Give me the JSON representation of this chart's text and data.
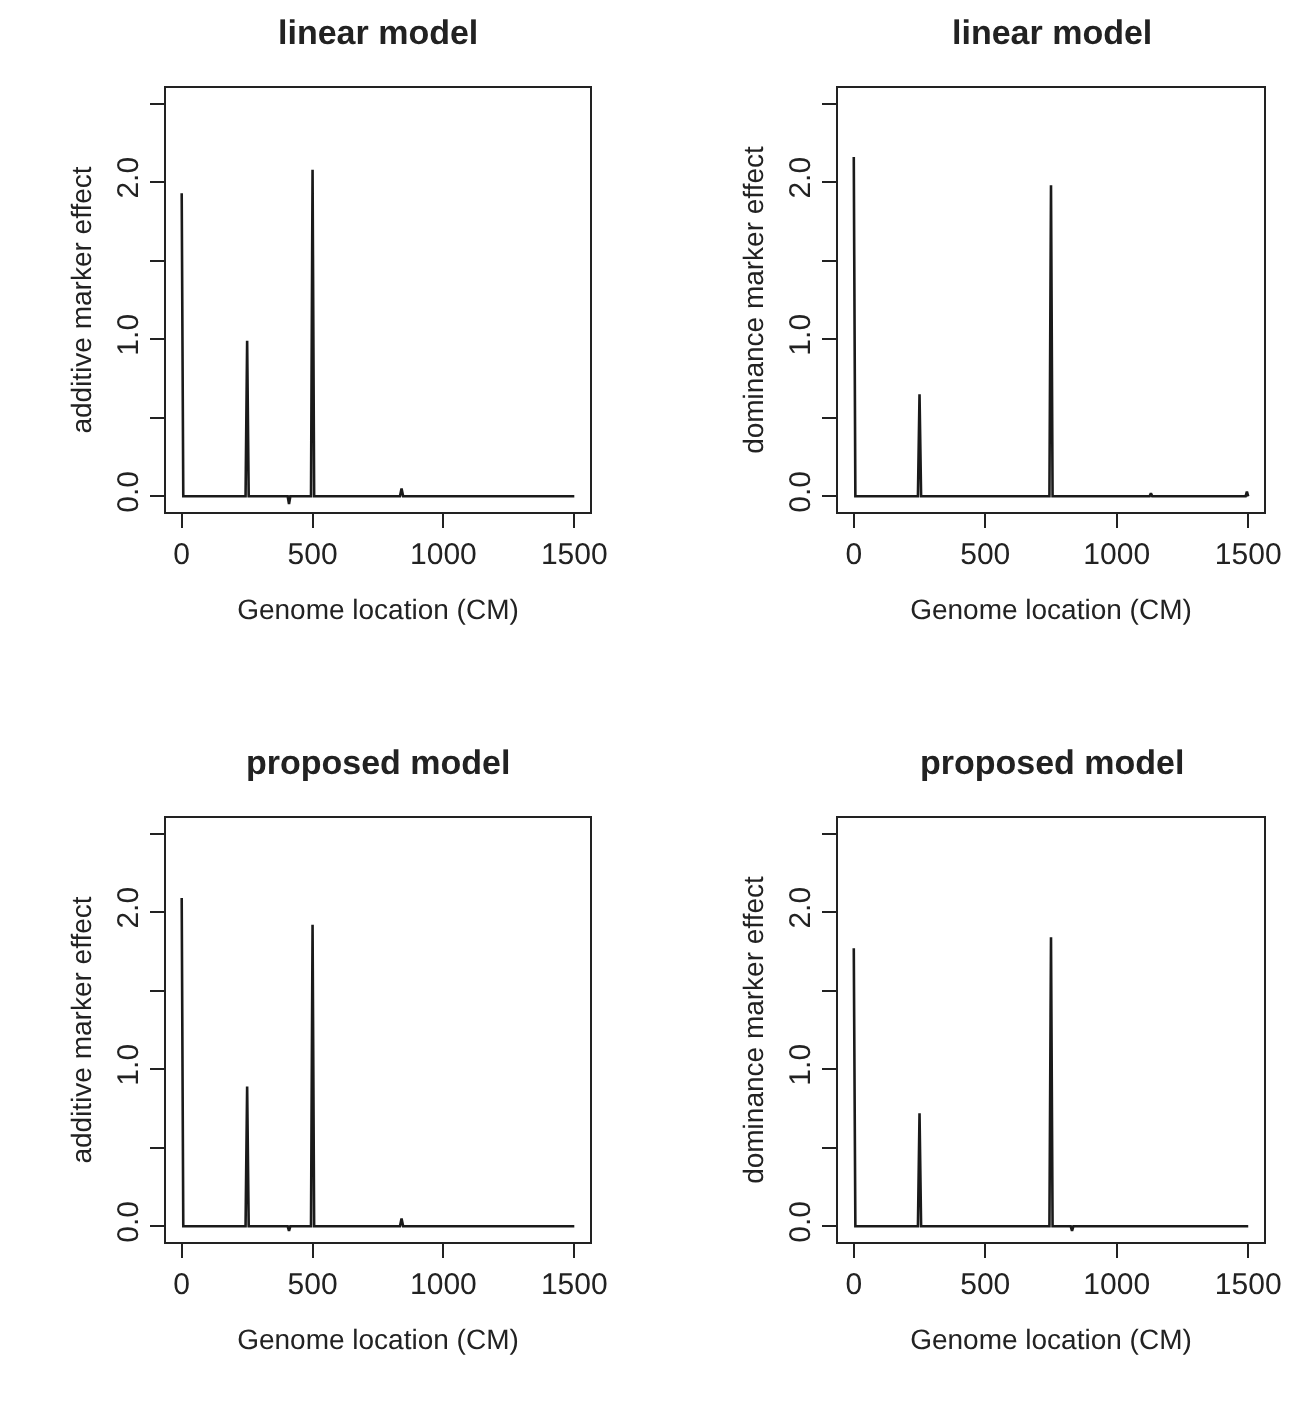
{
  "chart_data": [
    {
      "type": "line",
      "title": "linear model",
      "xlabel": "Genome location (CM)",
      "ylabel": "additive marker effect",
      "color": "#1a1a1a",
      "xlim": [
        -60,
        1560
      ],
      "ylim": [
        -0.1,
        2.6
      ],
      "xticks": [
        0,
        500,
        1000,
        1500
      ],
      "yticks": [
        {
          "value": 0,
          "label": "0.0"
        },
        {
          "value": 0.5,
          "label": null
        },
        {
          "value": 1,
          "label": "1.0"
        },
        {
          "value": 1.5,
          "label": null
        },
        {
          "value": 2,
          "label": "2.0"
        },
        {
          "value": 2.5,
          "label": null
        }
      ],
      "x": [
        0,
        6,
        100,
        244,
        250,
        256,
        405,
        410,
        415,
        494,
        500,
        506,
        700,
        834,
        840,
        846,
        1200,
        1500
      ],
      "values": [
        1.93,
        0,
        0,
        0,
        0.99,
        0,
        0,
        -0.05,
        0,
        0,
        2.08,
        0,
        0,
        0,
        0.05,
        0,
        0,
        0
      ]
    },
    {
      "type": "line",
      "title": "linear model",
      "xlabel": "Genome location (CM)",
      "ylabel": "dominance marker effect",
      "color": "#1a1a1a",
      "xlim": [
        -60,
        1560
      ],
      "ylim": [
        -0.1,
        2.6
      ],
      "xticks": [
        0,
        500,
        1000,
        1500
      ],
      "yticks": [
        {
          "value": 0,
          "label": "0.0"
        },
        {
          "value": 0.5,
          "label": null
        },
        {
          "value": 1,
          "label": "1.0"
        },
        {
          "value": 1.5,
          "label": null
        },
        {
          "value": 2,
          "label": "2.0"
        },
        {
          "value": 2.5,
          "label": null
        }
      ],
      "x": [
        0,
        6,
        100,
        244,
        250,
        256,
        500,
        744,
        750,
        756,
        1000,
        1125,
        1130,
        1135,
        1490,
        1495,
        1500
      ],
      "values": [
        2.16,
        0,
        0,
        0,
        0.65,
        0,
        0,
        0,
        1.98,
        0,
        0,
        0,
        0.02,
        0,
        0,
        0.03,
        0
      ]
    },
    {
      "type": "line",
      "title": "proposed model",
      "xlabel": "Genome location (CM)",
      "ylabel": "additive marker effect",
      "color": "#1a1a1a",
      "xlim": [
        -60,
        1560
      ],
      "ylim": [
        -0.1,
        2.6
      ],
      "xticks": [
        0,
        500,
        1000,
        1500
      ],
      "yticks": [
        {
          "value": 0,
          "label": "0.0"
        },
        {
          "value": 0.5,
          "label": null
        },
        {
          "value": 1,
          "label": "1.0"
        },
        {
          "value": 1.5,
          "label": null
        },
        {
          "value": 2,
          "label": "2.0"
        },
        {
          "value": 2.5,
          "label": null
        }
      ],
      "x": [
        0,
        6,
        100,
        244,
        250,
        256,
        405,
        410,
        415,
        494,
        500,
        506,
        700,
        834,
        840,
        846,
        1200,
        1500
      ],
      "values": [
        2.09,
        0,
        0,
        0,
        0.89,
        0,
        0,
        -0.03,
        0,
        0,
        1.92,
        0,
        0,
        0,
        0.05,
        0,
        0,
        0
      ]
    },
    {
      "type": "line",
      "title": "proposed model",
      "xlabel": "Genome location (CM)",
      "ylabel": "dominance marker effect",
      "color": "#1a1a1a",
      "xlim": [
        -60,
        1560
      ],
      "ylim": [
        -0.1,
        2.6
      ],
      "xticks": [
        0,
        500,
        1000,
        1500
      ],
      "yticks": [
        {
          "value": 0,
          "label": "0.0"
        },
        {
          "value": 0.5,
          "label": null
        },
        {
          "value": 1,
          "label": "1.0"
        },
        {
          "value": 1.5,
          "label": null
        },
        {
          "value": 2,
          "label": "2.0"
        },
        {
          "value": 2.5,
          "label": null
        }
      ],
      "x": [
        0,
        6,
        100,
        244,
        250,
        256,
        500,
        744,
        750,
        756,
        825,
        830,
        835,
        1200,
        1500
      ],
      "values": [
        1.77,
        0,
        0,
        0,
        0.72,
        0,
        0,
        0,
        1.84,
        0,
        0,
        -0.03,
        0,
        0,
        0
      ]
    }
  ]
}
